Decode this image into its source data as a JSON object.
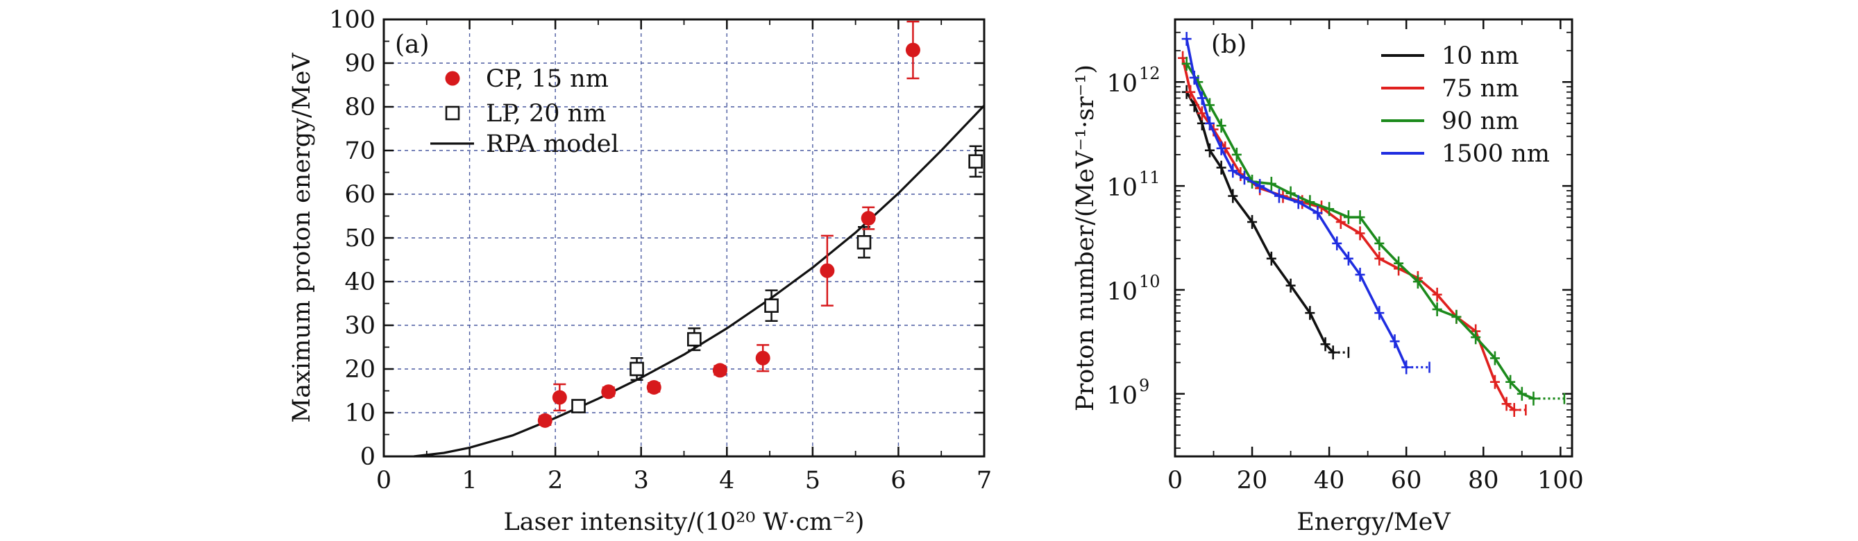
{
  "chart_data": [
    {
      "type": "scatter",
      "panel_label": "(a)",
      "xlabel": "Laser intensity/(10²⁰ W·cm⁻²)",
      "ylabel": "Maximum proton energy/MeV",
      "xlim": [
        0,
        7
      ],
      "ylim": [
        0,
        100
      ],
      "x_ticks": [
        0,
        1,
        2,
        3,
        4,
        5,
        6,
        7
      ],
      "y_ticks": [
        0,
        10,
        20,
        30,
        40,
        50,
        60,
        70,
        80,
        90,
        100
      ],
      "grid": true,
      "legend_position": "top-left",
      "colors": {
        "cp": "#d7191c",
        "lp": "#111111",
        "model": "#111111",
        "grid": "#4a5aa0"
      },
      "series": [
        {
          "name": "CP, 15 nm",
          "marker": "filled-circle",
          "points": [
            {
              "x": 1.88,
              "y": 8.2,
              "err": 1.0
            },
            {
              "x": 2.05,
              "y": 13.5,
              "err": 3.0
            },
            {
              "x": 2.62,
              "y": 14.8,
              "err": 1.0
            },
            {
              "x": 3.15,
              "y": 15.8,
              "err": 1.0
            },
            {
              "x": 3.92,
              "y": 19.7,
              "err": 1.0
            },
            {
              "x": 4.42,
              "y": 22.5,
              "err": 3.0
            },
            {
              "x": 5.17,
              "y": 42.5,
              "err": 8.0
            },
            {
              "x": 5.65,
              "y": 54.5,
              "err": 2.5
            },
            {
              "x": 6.17,
              "y": 93.0,
              "err": 6.5
            }
          ]
        },
        {
          "name": "LP, 20 nm",
          "marker": "open-square",
          "points": [
            {
              "x": 2.27,
              "y": 11.5,
              "err": 1.0
            },
            {
              "x": 2.95,
              "y": 20.0,
              "err": 2.5
            },
            {
              "x": 3.62,
              "y": 26.8,
              "err": 2.5
            },
            {
              "x": 4.52,
              "y": 34.5,
              "err": 3.5
            },
            {
              "x": 5.6,
              "y": 49.0,
              "err": 3.5
            },
            {
              "x": 6.9,
              "y": 67.5,
              "err": 3.5
            }
          ]
        },
        {
          "name": "RPA model",
          "marker": "line",
          "x": [
            0.35,
            0.7,
            1.0,
            1.5,
            2.0,
            2.5,
            3.0,
            3.5,
            4.0,
            4.5,
            5.0,
            5.5,
            6.0,
            6.5,
            7.0
          ],
          "y": [
            0.0,
            0.8,
            2.0,
            4.8,
            8.8,
            13.2,
            18.0,
            23.3,
            29.3,
            36.0,
            43.2,
            51.2,
            60.2,
            70.0,
            80.3
          ]
        }
      ]
    },
    {
      "type": "line",
      "panel_label": "(b)",
      "xlabel": "Energy/MeV",
      "ylabel": "Proton number/(MeV⁻¹·sr⁻¹)",
      "xlim": [
        0,
        103
      ],
      "ylim": [
        250000000.0,
        4000000000000.0
      ],
      "y_scale": "log",
      "x_ticks": [
        0,
        20,
        40,
        60,
        80,
        100
      ],
      "y_ticks": [
        {
          "value": 1000000000.0,
          "base": "10",
          "exp": "9"
        },
        {
          "value": 10000000000.0,
          "base": "10",
          "exp": "10"
        },
        {
          "value": 100000000000.0,
          "base": "10",
          "exp": "11"
        },
        {
          "value": 1000000000000.0,
          "base": "10",
          "exp": "12"
        }
      ],
      "grid": false,
      "legend_position": "top-right",
      "series": [
        {
          "name": "10 nm",
          "color": "#111111",
          "x": [
            3,
            5,
            7,
            9,
            12,
            15,
            20,
            25,
            30,
            35,
            39,
            41
          ],
          "y": [
            800000000000.0,
            600000000000.0,
            400000000000.0,
            220000000000.0,
            150000000000.0,
            80000000000.0,
            45000000000.0,
            20000000000.0,
            11000000000.0,
            6000000000.0,
            3000000000.0,
            2500000000.0
          ],
          "tail": [
            41,
            45
          ]
        },
        {
          "name": "75 nm",
          "color": "#e0201e",
          "x": [
            2,
            4,
            7,
            10,
            13,
            17,
            22,
            28,
            33,
            38,
            43,
            48,
            53,
            58,
            63,
            68,
            73,
            78,
            83,
            86,
            88
          ],
          "y": [
            1700000000000.0,
            800000000000.0,
            500000000000.0,
            350000000000.0,
            230000000000.0,
            130000000000.0,
            95000000000.0,
            80000000000.0,
            70000000000.0,
            62000000000.0,
            45000000000.0,
            35000000000.0,
            20000000000.0,
            16000000000.0,
            13000000000.0,
            9000000000.0,
            5500000000.0,
            4000000000.0,
            1300000000.0,
            800000000.0,
            700000000.0
          ],
          "tail": [
            88,
            91
          ]
        },
        {
          "name": "90 nm",
          "color": "#1c8a1c",
          "x": [
            3,
            6,
            9,
            12,
            16,
            20,
            25,
            30,
            35,
            40,
            45,
            48,
            53,
            58,
            63,
            68,
            73,
            78,
            83,
            87,
            90,
            93
          ],
          "y": [
            1500000000000.0,
            1000000000000.0,
            600000000000.0,
            380000000000.0,
            200000000000.0,
            110000000000.0,
            105000000000.0,
            85000000000.0,
            70000000000.0,
            60000000000.0,
            50000000000.0,
            50000000000.0,
            28000000000.0,
            18000000000.0,
            12000000000.0,
            6500000000.0,
            5500000000.0,
            3500000000.0,
            2200000000.0,
            1300000000.0,
            1000000000.0,
            900000000.0
          ],
          "tail": [
            93,
            101
          ]
        },
        {
          "name": "1500 nm",
          "color": "#1f2de0",
          "x": [
            3,
            5,
            7,
            9,
            12,
            15,
            18,
            22,
            27,
            32,
            37,
            42,
            45,
            48,
            53,
            57,
            60
          ],
          "y": [
            2600000000000.0,
            1100000000000.0,
            700000000000.0,
            400000000000.0,
            230000000000.0,
            140000000000.0,
            120000000000.0,
            100000000000.0,
            80000000000.0,
            70000000000.0,
            55000000000.0,
            28000000000.0,
            20000000000.0,
            14000000000.0,
            6000000000.0,
            3200000000.0,
            1800000000.0
          ],
          "tail": [
            60,
            66
          ]
        }
      ]
    }
  ]
}
